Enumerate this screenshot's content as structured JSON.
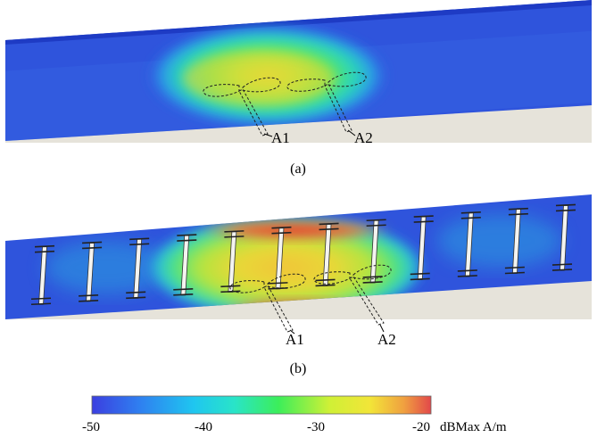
{
  "panel_a": {
    "caption": "(a)",
    "port_labels": [
      "A1",
      "A2"
    ]
  },
  "panel_b": {
    "caption": "(b)",
    "port_labels": [
      "A1",
      "A2"
    ],
    "strip_count": 12
  },
  "colorbar": {
    "ticks": [
      "-50",
      "-40",
      "-30",
      "-20"
    ],
    "unit": "dBMax A/m",
    "colors": [
      "#3a3ee0",
      "#1f9cf0",
      "#27e4e0",
      "#3cf07a",
      "#c8f032",
      "#f4e632",
      "#f4a03c",
      "#e0403c"
    ]
  }
}
